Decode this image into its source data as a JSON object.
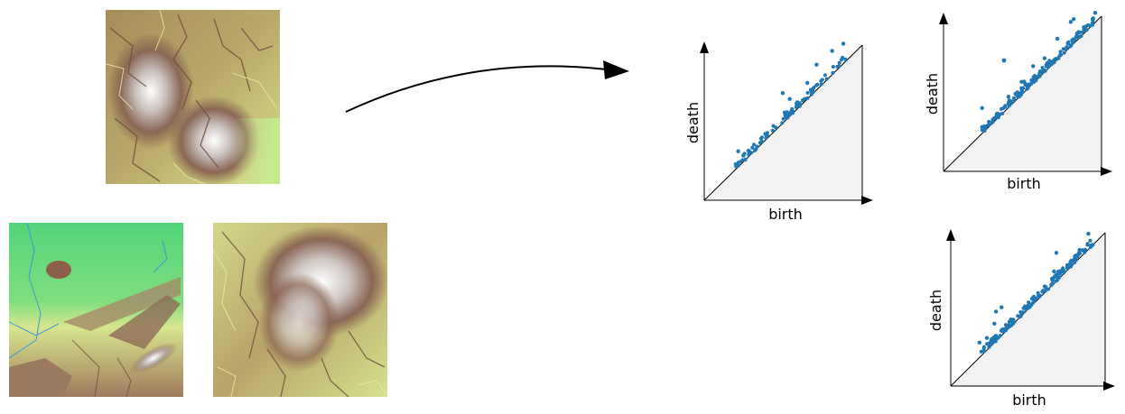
{
  "diagrams": [
    {
      "xlabel": "birth",
      "ylabel": "death"
    },
    {
      "xlabel": "birth",
      "ylabel": "death"
    },
    {
      "xlabel": "birth",
      "ylabel": "death"
    }
  ],
  "colors": {
    "points": "#1f77b4",
    "triangle_fill": "#f2f2f2",
    "terrain_low": "#e6e69a",
    "terrain_mid": "#8b6b5a",
    "terrain_high": "#f4f4f4",
    "lowland_green": "#5fd67a"
  }
}
